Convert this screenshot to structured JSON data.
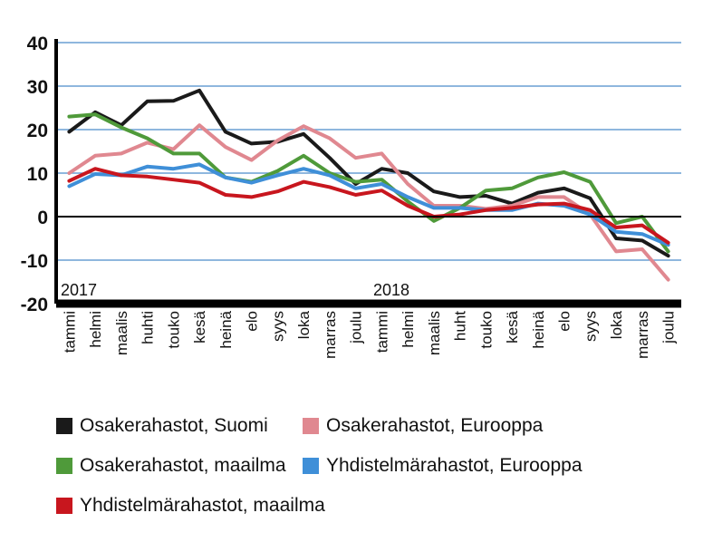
{
  "chart_data": {
    "type": "line",
    "title": "",
    "xlabel": "",
    "ylabel": "",
    "ylim": [
      -20,
      40
    ],
    "yticks": [
      40,
      30,
      20,
      10,
      0,
      -10,
      -20
    ],
    "grid": true,
    "legend_position": "bottom",
    "year_labels": [
      {
        "text": "2017",
        "at_index": 0
      },
      {
        "text": "2018",
        "at_index": 12
      }
    ],
    "categories": [
      "tammi",
      "helmi",
      "maalis",
      "huhti",
      "touko",
      "kesä",
      "heinä",
      "elo",
      "syys",
      "loka",
      "marras",
      "joulu",
      "tammi",
      "helmi",
      "maalis",
      "huht",
      "touko",
      "kesä",
      "heinä",
      "elo",
      "syys",
      "loka",
      "marras",
      "joulu"
    ],
    "series": [
      {
        "name": "Osakerahastot, Suomi",
        "color": "#1a1a1a",
        "values": [
          19.5,
          24,
          21,
          26.5,
          26.6,
          29,
          19.5,
          16.8,
          17.2,
          19,
          13.5,
          7.5,
          11,
          10,
          5.8,
          4.5,
          4.8,
          3,
          5.5,
          6.5,
          4.2,
          -5,
          -5.5,
          -9
        ]
      },
      {
        "name": "Osakerahastot, Eurooppa",
        "color": "#e08890",
        "values": [
          10,
          14,
          14.5,
          17,
          15.5,
          21,
          16,
          13,
          17.5,
          20.8,
          18,
          13.5,
          14.5,
          7.5,
          2.5,
          2.5,
          1.8,
          2.5,
          4.5,
          4.5,
          0.5,
          -8,
          -7.5,
          -14.5
        ]
      },
      {
        "name": "Osakerahastot, maailma",
        "color": "#4f9a3a",
        "values": [
          23,
          23.5,
          20.5,
          18,
          14.5,
          14.5,
          9,
          8,
          10.5,
          14,
          10,
          8,
          8.5,
          3.5,
          -1,
          2,
          6,
          6.5,
          9,
          10.2,
          8,
          -1.5,
          0,
          -8
        ]
      },
      {
        "name": "Yhdistelmärahastot, Eurooppa",
        "color": "#3f8fd8",
        "values": [
          7,
          9.8,
          9.5,
          11.5,
          11,
          12,
          9,
          7.8,
          9.5,
          11,
          9.5,
          6.5,
          7.5,
          4.5,
          2,
          2,
          1.5,
          1.5,
          3,
          2.5,
          0.5,
          -3.5,
          -4,
          -6.5
        ]
      },
      {
        "name": "Yhdistelmärahastot, maailma",
        "color": "#c8161e",
        "values": [
          8.2,
          11,
          9.5,
          9.2,
          8.5,
          7.8,
          5,
          4.5,
          5.8,
          8,
          6.8,
          5,
          6,
          2.5,
          0,
          0.5,
          1.5,
          2,
          2.8,
          3,
          1.5,
          -2.5,
          -2,
          -6
        ]
      }
    ]
  }
}
